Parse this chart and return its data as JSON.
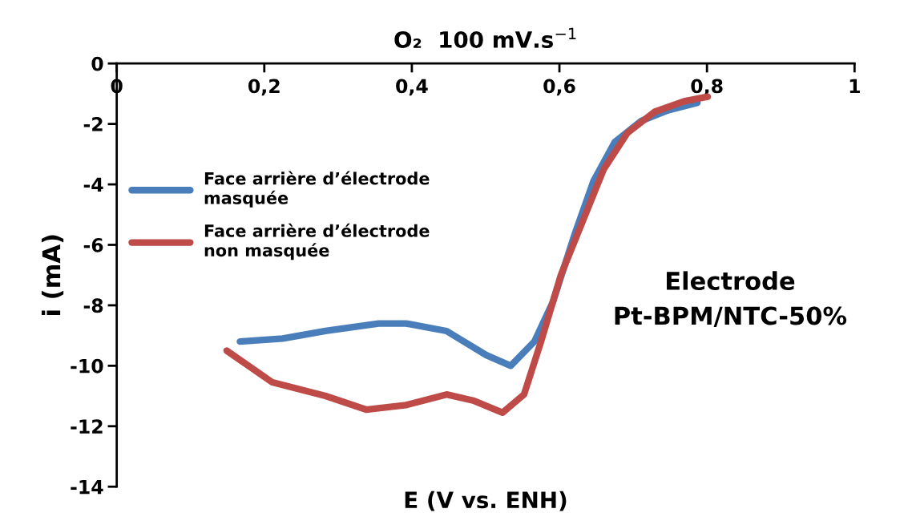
{
  "chart_data": {
    "type": "line",
    "title": "O₂  100 mV.s$^{−1}$",
    "xlabel": "E (V vs. ENH)",
    "ylabel": "i (mA)",
    "annotations": [
      "Electrode\nPt-BPM/NTC-50%"
    ],
    "xlim": [
      0,
      1
    ],
    "ylim": [
      -14,
      0
    ],
    "xticks": [
      0,
      {
        "value": 0.2,
        "label": "0,2"
      },
      {
        "value": 0.4,
        "label": "0,4"
      },
      {
        "value": 0.6,
        "label": "0,6"
      },
      {
        "value": 0.8,
        "label": "0,8"
      },
      1
    ],
    "yticks": [
      -14,
      -12,
      -10,
      -8,
      -6,
      -4,
      -2,
      0
    ],
    "grid": false,
    "legend": "left",
    "marker": "none",
    "line_style": "solid",
    "series": [
      {
        "name": "Face arrière d’électrode\nmasquée",
        "color": "#4a7ebb",
        "x": [
          0.167,
          0.225,
          0.283,
          0.355,
          0.392,
          0.447,
          0.501,
          0.534,
          0.566,
          0.591,
          0.62,
          0.646,
          0.675,
          0.711,
          0.747,
          0.787
        ],
        "values": [
          -9.2,
          -9.1,
          -8.85,
          -8.6,
          -8.6,
          -8.85,
          -9.65,
          -10.0,
          -9.2,
          -7.9,
          -5.7,
          -3.9,
          -2.6,
          -1.9,
          -1.55,
          -1.3
        ]
      },
      {
        "name": "Face arrière d’électrode\nnon masquée",
        "color": "#be4b48",
        "x": [
          0.149,
          0.211,
          0.283,
          0.338,
          0.392,
          0.447,
          0.483,
          0.523,
          0.552,
          0.575,
          0.602,
          0.631,
          0.66,
          0.692,
          0.729,
          0.769,
          0.801
        ],
        "values": [
          -9.5,
          -10.55,
          -11.0,
          -11.45,
          -11.3,
          -10.95,
          -11.15,
          -11.55,
          -10.95,
          -9.2,
          -7.0,
          -5.25,
          -3.5,
          -2.3,
          -1.6,
          -1.25,
          -1.1
        ]
      }
    ]
  }
}
